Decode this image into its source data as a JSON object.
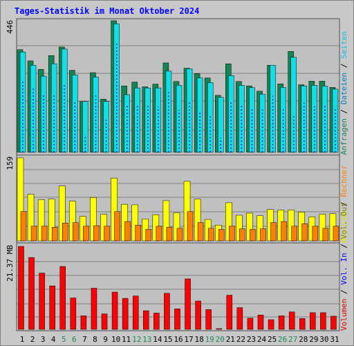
{
  "title": "Tages-Statistik im Monat Oktober 2024",
  "colors": {
    "background": "#c8c8c8",
    "plot_background": "#c0c0c0",
    "border": "#505050",
    "grid": "#808080",
    "title": "#0000ff",
    "anfragen": "#138555",
    "dateien": "#11dfe8",
    "seiten": "#1f22e8",
    "besuche": "#ffff00",
    "rechner": "#ff7f00",
    "vol_in": "#ff0000",
    "day_default": "#000000",
    "day_weekend": "#1d8a52"
  },
  "chart_data": [
    {
      "type": "bar",
      "ymax_label": "446",
      "ylim": [
        0,
        446
      ],
      "right_label": [
        {
          "text": "Anfragen",
          "color": "#138555"
        },
        {
          "text": " / ",
          "color": "#000000"
        },
        {
          "text": "Dateien",
          "color": "#0080c0"
        },
        {
          "text": " / ",
          "color": "#000000"
        },
        {
          "text": "Seiten",
          "color": "#11c0e8"
        }
      ],
      "categories": [
        "1",
        "2",
        "3",
        "4",
        "5",
        "6",
        "7",
        "8",
        "9",
        "10",
        "11",
        "12",
        "13",
        "14",
        "15",
        "16",
        "17",
        "18",
        "19",
        "20",
        "21",
        "22",
        "23",
        "24",
        "25",
        "26",
        "27",
        "28",
        "29",
        "30",
        "31"
      ],
      "series": [
        {
          "name": "Anfragen",
          "color": "#138555",
          "values": [
            348,
            310,
            281,
            328,
            357,
            278,
            172,
            270,
            180,
            446,
            225,
            238,
            222,
            231,
            303,
            240,
            285,
            267,
            252,
            193,
            300,
            240,
            225,
            207,
            295,
            232,
            342,
            229,
            241,
            241,
            220
          ]
        },
        {
          "name": "Dateien",
          "color": "#11dfe8",
          "values": [
            340,
            295,
            258,
            300,
            350,
            262,
            172,
            255,
            172,
            436,
            195,
            218,
            218,
            218,
            275,
            227,
            283,
            252,
            236,
            186,
            260,
            227,
            219,
            197,
            295,
            220,
            322,
            225,
            227,
            224,
            214
          ]
        },
        {
          "name": "Seiten",
          "color": "#1f22e8",
          "values": [
            245,
            220,
            195,
            200,
            228,
            175,
            60,
            200,
            116,
            374,
            163,
            162,
            164,
            155,
            212,
            143,
            170,
            140,
            126,
            49,
            170,
            163,
            150,
            145,
            191,
            147,
            127,
            168,
            156,
            158,
            153
          ]
        }
      ]
    },
    {
      "type": "bar",
      "ymax_label": "159",
      "ylim": [
        0,
        159
      ],
      "right_label": [
        {
          "text": "Besuche",
          "color": "#e0e000"
        },
        {
          "text": " / ",
          "color": "#000000"
        },
        {
          "text": "Rechner",
          "color": "#ff7f00"
        }
      ],
      "categories": [
        "1",
        "2",
        "3",
        "4",
        "5",
        "6",
        "7",
        "8",
        "9",
        "10",
        "11",
        "12",
        "13",
        "14",
        "15",
        "16",
        "17",
        "18",
        "19",
        "20",
        "21",
        "22",
        "23",
        "24",
        "25",
        "26",
        "27",
        "28",
        "29",
        "30",
        "31"
      ],
      "series": [
        {
          "name": "Besuche",
          "color": "#ffff00",
          "values": [
            159,
            89,
            79,
            80,
            105,
            76,
            47,
            83,
            51,
            120,
            70,
            69,
            42,
            50,
            77,
            54,
            114,
            80,
            41,
            30,
            73,
            49,
            53,
            48,
            60,
            59,
            59,
            55,
            46,
            51,
            52
          ]
        },
        {
          "name": "Rechner",
          "color": "#ff7f00",
          "values": [
            56,
            28,
            28,
            26,
            34,
            35,
            28,
            29,
            28,
            56,
            37,
            30,
            22,
            28,
            26,
            24,
            56,
            35,
            24,
            22,
            28,
            23,
            22,
            23,
            35,
            37,
            28,
            33,
            28,
            24,
            28
          ]
        }
      ]
    },
    {
      "type": "bar",
      "ymax_label": "21.37 MB",
      "ylim": [
        0,
        21.37
      ],
      "right_label": [
        {
          "text": "Volumen",
          "color": "#e00000"
        },
        {
          "text": " / ",
          "color": "#000000"
        },
        {
          "text": "Vol. In",
          "color": "#0000ff"
        },
        {
          "text": " / ",
          "color": "#000000"
        },
        {
          "text": "Vol. Out",
          "color": "#808000"
        }
      ],
      "categories": [
        "1",
        "2",
        "3",
        "4",
        "5",
        "6",
        "7",
        "8",
        "9",
        "10",
        "11",
        "12",
        "13",
        "14",
        "15",
        "16",
        "17",
        "18",
        "19",
        "20",
        "21",
        "22",
        "23",
        "24",
        "25",
        "26",
        "27",
        "28",
        "29",
        "30",
        "31"
      ],
      "series": [
        {
          "name": "Volumen",
          "color": "#ff0000",
          "values": [
            21.37,
            18.5,
            14.5,
            11.2,
            16.2,
            8.1,
            3.5,
            10.6,
            4.0,
            9.6,
            8.0,
            8.6,
            4.8,
            4.2,
            9.3,
            5.3,
            13.0,
            7.3,
            5.1,
            0.2,
            8.8,
            5.6,
            2.9,
            3.7,
            2.5,
            3.5,
            4.5,
            2.8,
            4.3,
            4.3,
            3.4
          ]
        }
      ]
    }
  ],
  "weekend_days": [
    "5",
    "6",
    "12",
    "13",
    "19",
    "20",
    "26",
    "27"
  ]
}
